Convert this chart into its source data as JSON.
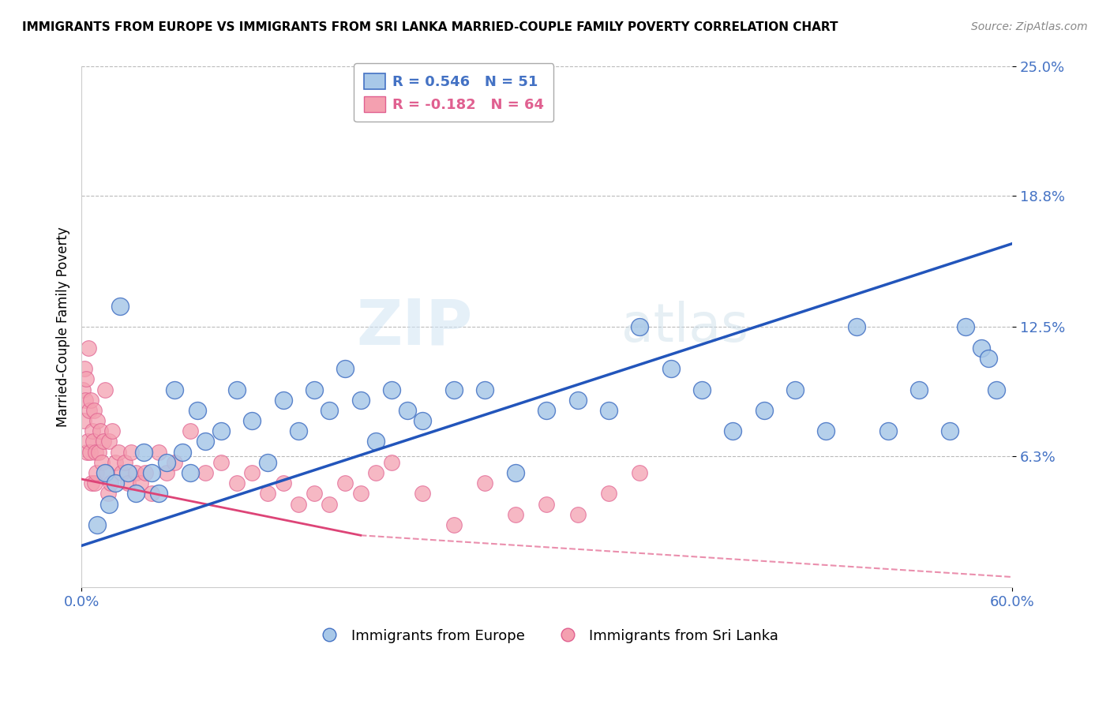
{
  "title": "IMMIGRANTS FROM EUROPE VS IMMIGRANTS FROM SRI LANKA MARRIED-COUPLE FAMILY POVERTY CORRELATION CHART",
  "source": "Source: ZipAtlas.com",
  "ylabel": "Married-Couple Family Poverty",
  "x_min": 0.0,
  "x_max": 60.0,
  "y_min": 0.0,
  "y_max": 25.0,
  "y_tick_vals": [
    6.3,
    12.5,
    18.8,
    25.0
  ],
  "y_tick_labels": [
    "6.3%",
    "12.5%",
    "18.8%",
    "25.0%"
  ],
  "x_tick_vals": [
    0.0,
    60.0
  ],
  "x_tick_labels": [
    "0.0%",
    "60.0%"
  ],
  "blue_color": "#a8c8e8",
  "pink_color": "#f4a0b0",
  "blue_edge": "#4472c4",
  "pink_edge": "#e06090",
  "blue_line_color": "#2255bb",
  "pink_line_color": "#dd4477",
  "blue_R": 0.546,
  "blue_N": 51,
  "pink_R": -0.182,
  "pink_N": 64,
  "legend_label_blue": "Immigrants from Europe",
  "legend_label_pink": "Immigrants from Sri Lanka",
  "watermark": "ZIPatlas",
  "blue_line_x0": 0.0,
  "blue_line_y0": 2.0,
  "blue_line_x1": 60.0,
  "blue_line_y1": 16.5,
  "pink_line_x0": 0.0,
  "pink_line_y0": 5.2,
  "pink_line_x1": 18.0,
  "pink_line_y1": 2.5,
  "blue_scatter_x": [
    1.0,
    1.5,
    1.8,
    2.2,
    2.5,
    3.0,
    3.5,
    4.0,
    4.5,
    5.0,
    5.5,
    6.0,
    6.5,
    7.0,
    7.5,
    8.0,
    9.0,
    10.0,
    11.0,
    12.0,
    13.0,
    14.0,
    15.0,
    16.0,
    17.0,
    18.0,
    19.0,
    20.0,
    21.0,
    22.0,
    24.0,
    26.0,
    28.0,
    30.0,
    32.0,
    34.0,
    36.0,
    38.0,
    40.0,
    42.0,
    44.0,
    46.0,
    48.0,
    50.0,
    52.0,
    54.0,
    56.0,
    57.0,
    58.0,
    58.5,
    59.0
  ],
  "blue_scatter_y": [
    3.0,
    5.5,
    4.0,
    5.0,
    13.5,
    5.5,
    4.5,
    6.5,
    5.5,
    4.5,
    6.0,
    9.5,
    6.5,
    5.5,
    8.5,
    7.0,
    7.5,
    9.5,
    8.0,
    6.0,
    9.0,
    7.5,
    9.5,
    8.5,
    10.5,
    9.0,
    7.0,
    9.5,
    8.5,
    8.0,
    9.5,
    9.5,
    5.5,
    8.5,
    9.0,
    8.5,
    12.5,
    10.5,
    9.5,
    7.5,
    8.5,
    9.5,
    7.5,
    12.5,
    7.5,
    9.5,
    7.5,
    12.5,
    11.5,
    11.0,
    9.5
  ],
  "pink_scatter_x": [
    0.1,
    0.15,
    0.2,
    0.25,
    0.3,
    0.35,
    0.4,
    0.45,
    0.5,
    0.55,
    0.6,
    0.65,
    0.7,
    0.75,
    0.8,
    0.85,
    0.9,
    0.95,
    1.0,
    1.1,
    1.2,
    1.3,
    1.4,
    1.5,
    1.6,
    1.7,
    1.8,
    1.9,
    2.0,
    2.2,
    2.4,
    2.6,
    2.8,
    3.0,
    3.2,
    3.5,
    3.8,
    4.1,
    4.5,
    5.0,
    5.5,
    6.0,
    7.0,
    8.0,
    9.0,
    10.0,
    11.0,
    12.0,
    13.0,
    14.0,
    15.0,
    16.0,
    17.0,
    18.0,
    19.0,
    20.0,
    22.0,
    24.0,
    26.0,
    28.0,
    30.0,
    32.0,
    34.0,
    36.0
  ],
  "pink_scatter_y": [
    9.5,
    8.0,
    10.5,
    9.0,
    10.0,
    6.5,
    7.0,
    11.5,
    8.5,
    6.5,
    9.0,
    5.0,
    7.5,
    7.0,
    8.5,
    5.0,
    6.5,
    5.5,
    8.0,
    6.5,
    7.5,
    6.0,
    7.0,
    9.5,
    5.5,
    4.5,
    7.0,
    5.0,
    7.5,
    6.0,
    6.5,
    5.5,
    6.0,
    5.0,
    6.5,
    5.5,
    5.0,
    5.5,
    4.5,
    6.5,
    5.5,
    6.0,
    7.5,
    5.5,
    6.0,
    5.0,
    5.5,
    4.5,
    5.0,
    4.0,
    4.5,
    4.0,
    5.0,
    4.5,
    5.5,
    6.0,
    4.5,
    3.0,
    5.0,
    3.5,
    4.0,
    3.5,
    4.5,
    5.5
  ]
}
